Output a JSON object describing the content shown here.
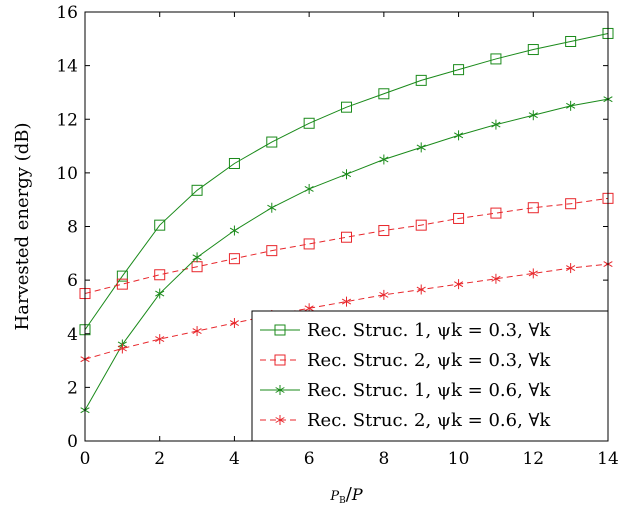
{
  "chart_data": {
    "type": "line",
    "title": "",
    "xlabel": "P_B/P",
    "ylabel": "Harvested energy (dB)",
    "xlim": [
      0,
      14
    ],
    "ylim": [
      0,
      16
    ],
    "xticks": [
      0,
      2,
      4,
      6,
      8,
      10,
      12,
      14
    ],
    "yticks": [
      0,
      2,
      4,
      6,
      8,
      10,
      12,
      14,
      16
    ],
    "grid": false,
    "legend_position": "bottom-right",
    "x": [
      0,
      1,
      2,
      3,
      4,
      5,
      6,
      7,
      8,
      9,
      10,
      11,
      12,
      13,
      14
    ],
    "series": [
      {
        "name": "Rec. Struc. 1, ψk = 0.3, ∀k",
        "color": "#1a8a1a",
        "line": "solid",
        "marker": "square",
        "values": [
          4.15,
          6.15,
          8.05,
          9.35,
          10.35,
          11.15,
          11.85,
          12.45,
          12.95,
          13.45,
          13.85,
          14.25,
          14.6,
          14.9,
          15.2
        ]
      },
      {
        "name": "Rec. Struc. 2, ψk = 0.3, ∀k",
        "color": "#e8262b",
        "line": "dashed",
        "marker": "square",
        "values": [
          5.5,
          5.85,
          6.2,
          6.5,
          6.8,
          7.1,
          7.35,
          7.6,
          7.85,
          8.05,
          8.3,
          8.5,
          8.7,
          8.85,
          9.05
        ]
      },
      {
        "name": "Rec. Struc. 1, ψk = 0.6, ∀k",
        "color": "#1a8a1a",
        "line": "solid",
        "marker": "star",
        "values": [
          1.15,
          3.6,
          5.5,
          6.85,
          7.85,
          8.7,
          9.4,
          9.95,
          10.5,
          10.95,
          11.4,
          11.8,
          12.15,
          12.5,
          12.75
        ]
      },
      {
        "name": "Rec. Struc. 2, ψk = 0.6, ∀k",
        "color": "#e8262b",
        "line": "dashed",
        "marker": "star",
        "values": [
          3.05,
          3.45,
          3.8,
          4.1,
          4.4,
          4.7,
          4.95,
          5.2,
          5.45,
          5.65,
          5.85,
          6.05,
          6.25,
          6.45,
          6.6
        ]
      }
    ]
  }
}
